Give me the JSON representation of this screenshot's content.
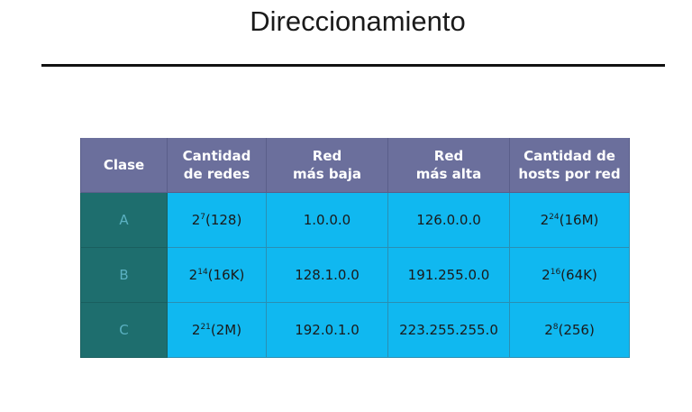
{
  "slide": {
    "title": "Direccionamiento"
  },
  "table": {
    "headers": [
      [
        "Clase"
      ],
      [
        "Cantidad",
        "de redes"
      ],
      [
        "Red",
        "más baja"
      ],
      [
        "Red",
        "más alta"
      ],
      [
        "Cantidad de",
        "hosts por red"
      ]
    ],
    "rows": [
      {
        "clase": "A",
        "redes": {
          "base": "2",
          "exp": "7",
          "suffix": "(128)"
        },
        "baja": "1.0.0.0",
        "alta": "126.0.0.0",
        "hosts": {
          "base": "2",
          "exp": "24",
          "suffix": "(16M)"
        }
      },
      {
        "clase": "B",
        "redes": {
          "base": "2",
          "exp": "14",
          "suffix": "(16K)"
        },
        "baja": "128.1.0.0",
        "alta": "191.255.0.0",
        "hosts": {
          "base": "2",
          "exp": "16",
          "suffix": "(64K)"
        }
      },
      {
        "clase": "C",
        "redes": {
          "base": "2",
          "exp": "21",
          "suffix": "(2M)"
        },
        "baja": "192.0.1.0",
        "alta": "223.255.255.0",
        "hosts": {
          "base": "2",
          "exp": "8",
          "suffix": "(256)"
        }
      }
    ]
  },
  "colors": {
    "header_bg": "#6b6f9c",
    "class_col_bg": "#1e6e6e",
    "data_bg": "#10b8f0"
  }
}
